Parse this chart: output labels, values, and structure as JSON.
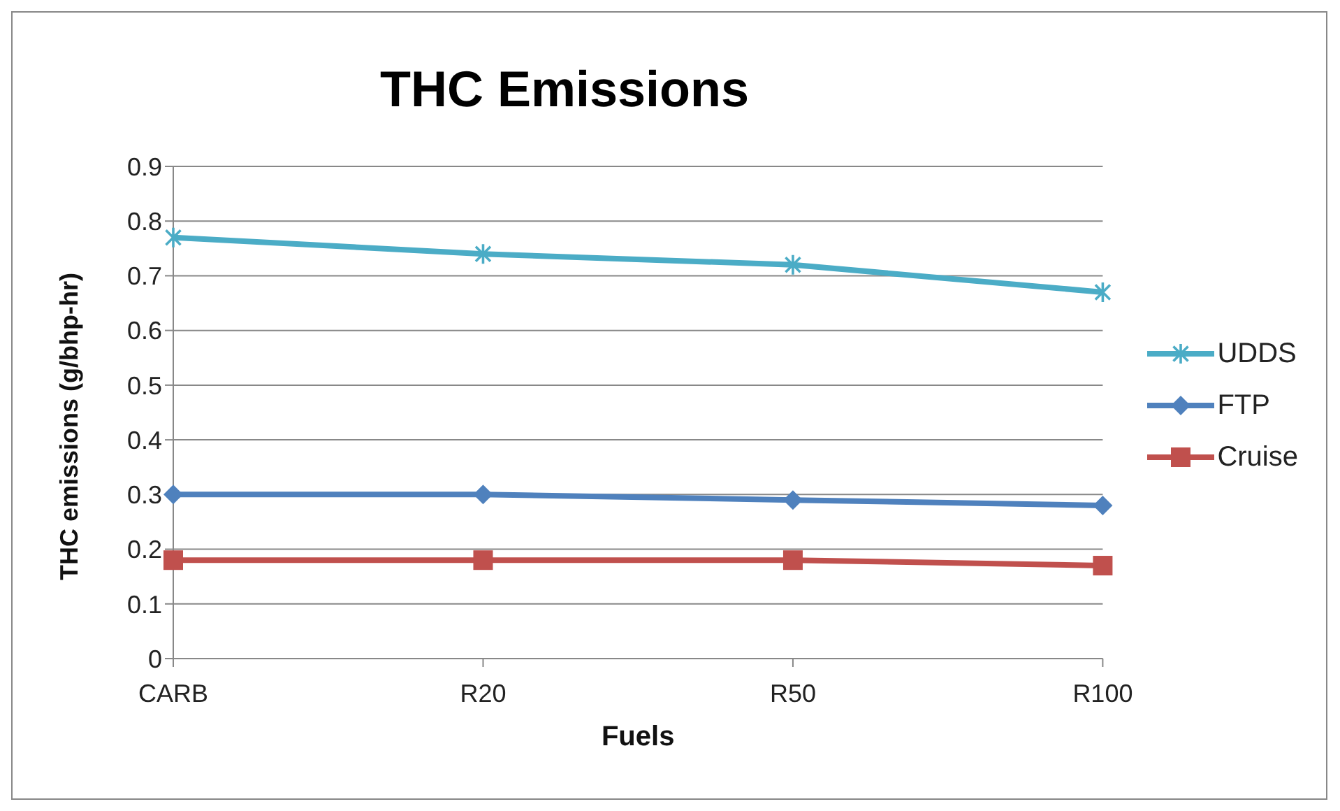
{
  "chart_data": {
    "type": "line",
    "title": "THC Emissions",
    "xlabel": "Fuels",
    "ylabel": "THC emissions (g/bhp-hr)",
    "categories": [
      "CARB",
      "R20",
      "R50",
      "R100"
    ],
    "series": [
      {
        "name": "UDDS",
        "color": "#4bacc6",
        "marker": "cross",
        "values": [
          0.77,
          0.74,
          0.72,
          0.67
        ]
      },
      {
        "name": "FTP",
        "color": "#4f81bd",
        "marker": "diamond",
        "values": [
          0.3,
          0.3,
          0.29,
          0.28
        ]
      },
      {
        "name": "Cruise",
        "color": "#c0504d",
        "marker": "square",
        "values": [
          0.18,
          0.18,
          0.18,
          0.17
        ]
      }
    ],
    "ylim": [
      0,
      0.9
    ],
    "yticks": [
      0,
      0.1,
      0.2,
      0.3,
      0.4,
      0.5,
      0.6,
      0.7,
      0.8,
      0.9
    ],
    "grid": "y",
    "legend": "right",
    "line_style": "solid"
  }
}
